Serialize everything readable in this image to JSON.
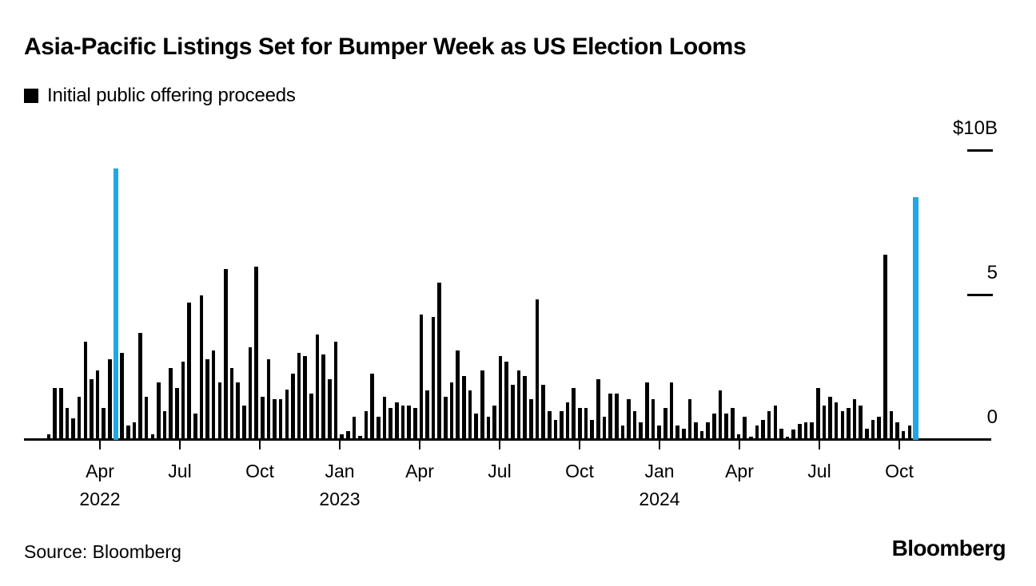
{
  "header": {
    "title": "Asia-Pacific Listings Set for Bumper Week as US Election Looms",
    "legend_label": "Initial public offering proceeds"
  },
  "footer": {
    "source": "Source: Bloomberg",
    "logo": "Bloomberg"
  },
  "chart_data": {
    "type": "bar",
    "title": "Asia-Pacific Listings Set for Bumper Week as US Election Looms",
    "series_label": "Initial public offering proceeds",
    "unit": "billion USD",
    "frequency": "weekly",
    "ylim": [
      0,
      10
    ],
    "grid": false,
    "legend_position": "top-left",
    "y_ticks": [
      {
        "label": "$10B",
        "value": 10,
        "dash": true
      },
      {
        "label": "5",
        "value": 5,
        "dash": true
      },
      {
        "label": "0",
        "value": 0,
        "dash": false
      }
    ],
    "x_ticks": [
      {
        "label": "Apr",
        "year": "2022"
      },
      {
        "label": "Jul"
      },
      {
        "label": "Oct"
      },
      {
        "label": "Jan",
        "year": "2023"
      },
      {
        "label": "Apr"
      },
      {
        "label": "Jul"
      },
      {
        "label": "Oct"
      },
      {
        "label": "Jan",
        "year": "2024"
      },
      {
        "label": "Apr"
      },
      {
        "label": "Jul"
      },
      {
        "label": "Oct"
      }
    ],
    "values": [
      0.2,
      1.8,
      1.8,
      1.1,
      0.75,
      1.5,
      3.4,
      2.1,
      2.4,
      1.1,
      2.8,
      9.4,
      3.0,
      0.5,
      0.6,
      3.7,
      1.5,
      0.2,
      2.0,
      1.0,
      2.5,
      1.8,
      2.7,
      4.75,
      0.9,
      5.0,
      2.8,
      3.1,
      2.0,
      5.9,
      2.5,
      2.0,
      1.2,
      3.2,
      6.0,
      1.5,
      2.8,
      1.4,
      1.4,
      1.75,
      2.3,
      3.0,
      2.9,
      1.6,
      3.65,
      2.95,
      2.1,
      3.4,
      0.2,
      0.3,
      0.8,
      0.15,
      1.0,
      2.3,
      0.8,
      1.5,
      1.1,
      1.3,
      1.2,
      1.2,
      1.1,
      4.35,
      1.7,
      4.25,
      5.45,
      1.5,
      2.0,
      3.1,
      2.2,
      1.7,
      0.9,
      2.4,
      0.8,
      1.2,
      2.9,
      2.7,
      1.9,
      2.4,
      2.2,
      1.4,
      4.85,
      1.9,
      1.0,
      0.7,
      1.0,
      1.3,
      1.8,
      1.1,
      1.1,
      0.7,
      2.1,
      0.8,
      1.6,
      1.6,
      0.5,
      1.4,
      1.0,
      0.6,
      2.0,
      1.4,
      0.5,
      1.1,
      2.0,
      0.5,
      0.4,
      1.4,
      0.6,
      0.3,
      0.6,
      0.9,
      1.7,
      0.9,
      1.1,
      0.2,
      0.8,
      0.1,
      0.5,
      0.7,
      1.0,
      1.2,
      0.4,
      0.1,
      0.35,
      0.55,
      0.6,
      0.6,
      1.8,
      1.2,
      1.5,
      1.3,
      1.0,
      1.1,
      1.4,
      1.2,
      0.4,
      0.7,
      0.8,
      6.4,
      1.0,
      0.6,
      0.3,
      0.5,
      8.4
    ],
    "highlighted_indices": [
      11,
      142
    ],
    "colors": {
      "bar": "#000000",
      "highlight": "#1FA7E8"
    }
  }
}
